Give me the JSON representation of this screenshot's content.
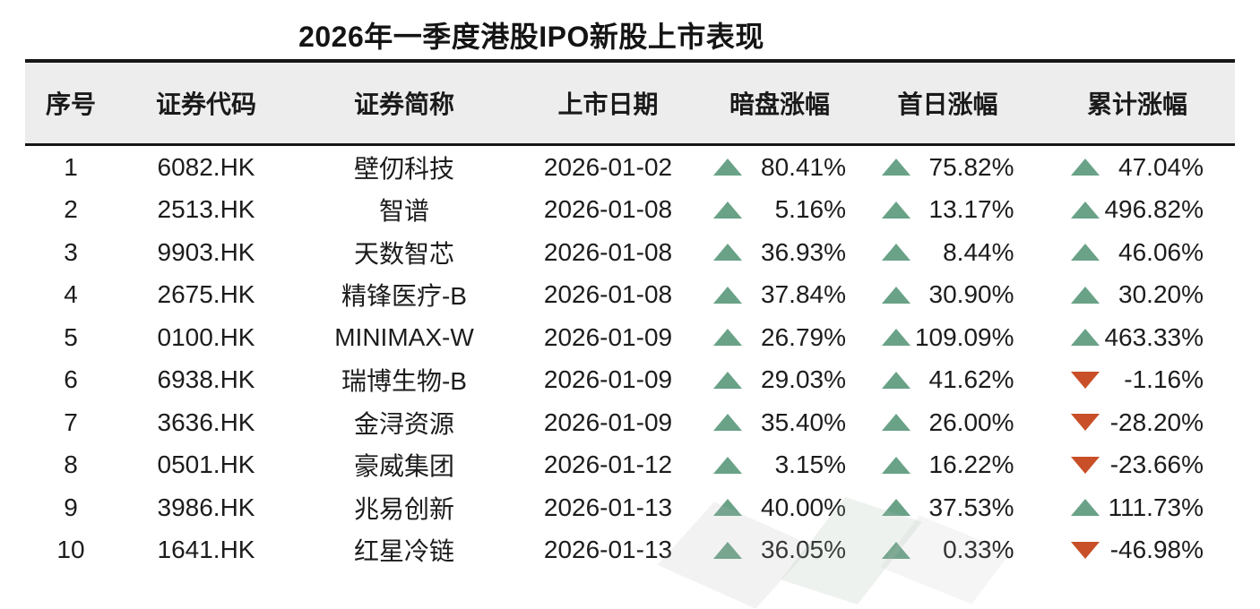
{
  "title": "2026年一季度港股IPO新股上市表现",
  "chart_data": {
    "type": "table",
    "title": "2026年一季度港股IPO新股上市表现",
    "columns": [
      "序号",
      "证券代码",
      "证券简称",
      "上市日期",
      "暗盘涨幅",
      "首日涨幅",
      "累计涨幅"
    ],
    "rows": [
      {
        "seq": "1",
        "code": "6082.HK",
        "name": "壁仞科技",
        "date": "2026-01-02",
        "dark_pct": {
          "dir": "up",
          "value": "80.41%"
        },
        "first_day_pct": {
          "dir": "up",
          "value": "75.82%"
        },
        "cumulative_pct": {
          "dir": "up",
          "value": "47.04%"
        }
      },
      {
        "seq": "2",
        "code": "2513.HK",
        "name": "智谱",
        "date": "2026-01-08",
        "dark_pct": {
          "dir": "up",
          "value": "5.16%"
        },
        "first_day_pct": {
          "dir": "up",
          "value": "13.17%"
        },
        "cumulative_pct": {
          "dir": "up",
          "value": "496.82%"
        }
      },
      {
        "seq": "3",
        "code": "9903.HK",
        "name": "天数智芯",
        "date": "2026-01-08",
        "dark_pct": {
          "dir": "up",
          "value": "36.93%"
        },
        "first_day_pct": {
          "dir": "up",
          "value": "8.44%"
        },
        "cumulative_pct": {
          "dir": "up",
          "value": "46.06%"
        }
      },
      {
        "seq": "4",
        "code": "2675.HK",
        "name": "精锋医疗-B",
        "date": "2026-01-08",
        "dark_pct": {
          "dir": "up",
          "value": "37.84%"
        },
        "first_day_pct": {
          "dir": "up",
          "value": "30.90%"
        },
        "cumulative_pct": {
          "dir": "up",
          "value": "30.20%"
        }
      },
      {
        "seq": "5",
        "code": "0100.HK",
        "name": "MINIMAX-W",
        "date": "2026-01-09",
        "dark_pct": {
          "dir": "up",
          "value": "26.79%"
        },
        "first_day_pct": {
          "dir": "up",
          "value": "109.09%"
        },
        "cumulative_pct": {
          "dir": "up",
          "value": "463.33%"
        }
      },
      {
        "seq": "6",
        "code": "6938.HK",
        "name": "瑞博生物-B",
        "date": "2026-01-09",
        "dark_pct": {
          "dir": "up",
          "value": "29.03%"
        },
        "first_day_pct": {
          "dir": "up",
          "value": "41.62%"
        },
        "cumulative_pct": {
          "dir": "down",
          "value": "-1.16%"
        }
      },
      {
        "seq": "7",
        "code": "3636.HK",
        "name": "金浔资源",
        "date": "2026-01-09",
        "dark_pct": {
          "dir": "up",
          "value": "35.40%"
        },
        "first_day_pct": {
          "dir": "up",
          "value": "26.00%"
        },
        "cumulative_pct": {
          "dir": "down",
          "value": "-28.20%"
        }
      },
      {
        "seq": "8",
        "code": "0501.HK",
        "name": "豪威集团",
        "date": "2026-01-12",
        "dark_pct": {
          "dir": "up",
          "value": "3.15%"
        },
        "first_day_pct": {
          "dir": "up",
          "value": "16.22%"
        },
        "cumulative_pct": {
          "dir": "down",
          "value": "-23.66%"
        }
      },
      {
        "seq": "9",
        "code": "3986.HK",
        "name": "兆易创新",
        "date": "2026-01-13",
        "dark_pct": {
          "dir": "up",
          "value": "40.00%"
        },
        "first_day_pct": {
          "dir": "up",
          "value": "37.53%"
        },
        "cumulative_pct": {
          "dir": "up",
          "value": "111.73%"
        }
      },
      {
        "seq": "10",
        "code": "1641.HK",
        "name": "红星冷链",
        "date": "2026-01-13",
        "dark_pct": {
          "dir": "up",
          "value": "36.05%"
        },
        "first_day_pct": {
          "dir": "up",
          "value": "0.33%"
        },
        "cumulative_pct": {
          "dir": "down",
          "value": "-46.98%"
        }
      }
    ],
    "layout": {
      "header_background": "#ededed",
      "rules": "heavy top and below-header horizontal rules",
      "grid": "off"
    }
  },
  "icons": {
    "up_triangle": "▲",
    "down_triangle": "▼"
  },
  "colors": {
    "up_green": "#69a287",
    "down_red": "#c84f27",
    "header_bg": "#ededed",
    "text": "#1c1c1c",
    "rule": "#161616"
  }
}
